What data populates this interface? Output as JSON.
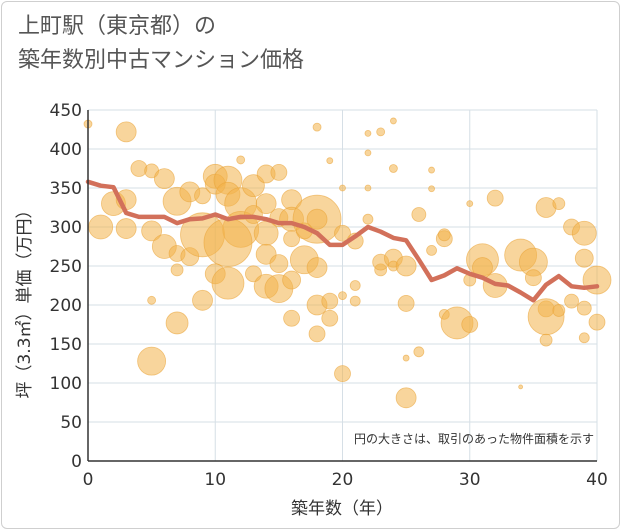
{
  "chart_data": {
    "type": "scatter",
    "title": "上町駅（東京都）の\n築年数別中古マンション価格",
    "xlabel": "築年数（年）",
    "ylabel": "坪（3.3㎡）単価（万円）",
    "xlim": [
      0,
      40
    ],
    "ylim": [
      0,
      450
    ],
    "x_ticks": [
      "0",
      "10",
      "20",
      "30",
      "40"
    ],
    "y_ticks": [
      "0",
      "50",
      "100",
      "150",
      "200",
      "250",
      "300",
      "350",
      "400",
      "450"
    ],
    "grid": true,
    "annotation": "円の大きさは、取引のあった物件面積を示す",
    "colors": {
      "bubble": "#f2b24a",
      "line": "#d2705a",
      "grid": "#d6dfe6",
      "axis": "#333333"
    },
    "series": [
      {
        "type": "line",
        "points": [
          [
            0,
            358
          ],
          [
            1,
            353
          ],
          [
            2,
            351
          ],
          [
            3,
            318
          ],
          [
            4,
            313
          ],
          [
            5,
            313
          ],
          [
            6,
            313
          ],
          [
            7,
            305
          ],
          [
            8,
            310
          ],
          [
            9,
            311
          ],
          [
            10,
            316
          ],
          [
            11,
            310
          ],
          [
            12,
            313
          ],
          [
            13,
            313
          ],
          [
            14,
            310
          ],
          [
            15,
            305
          ],
          [
            16,
            305
          ],
          [
            17,
            300
          ],
          [
            18,
            292
          ],
          [
            19,
            277
          ],
          [
            20,
            277
          ],
          [
            21,
            288
          ],
          [
            22,
            300
          ],
          [
            23,
            294
          ],
          [
            24,
            286
          ],
          [
            25,
            283
          ],
          [
            26,
            258
          ],
          [
            27,
            232
          ],
          [
            28,
            238
          ],
          [
            29,
            247
          ],
          [
            30,
            240
          ],
          [
            31,
            235
          ],
          [
            32,
            227
          ],
          [
            33,
            225
          ],
          [
            34,
            216
          ],
          [
            35,
            206
          ],
          [
            36,
            226
          ],
          [
            37,
            237
          ],
          [
            38,
            224
          ],
          [
            39,
            222
          ],
          [
            40,
            224
          ]
        ]
      },
      {
        "type": "bubble",
        "points": [
          [
            0,
            432,
            4
          ],
          [
            3,
            422,
            10
          ],
          [
            18,
            428,
            4
          ],
          [
            22,
            420,
            3
          ],
          [
            23,
            422,
            4
          ],
          [
            24,
            436,
            3
          ],
          [
            22,
            395,
            3
          ],
          [
            19,
            385,
            3
          ],
          [
            24,
            375,
            4
          ],
          [
            12,
            386,
            4
          ],
          [
            2,
            330,
            12
          ],
          [
            3,
            335,
            10
          ],
          [
            1,
            300,
            12
          ],
          [
            3,
            298,
            10
          ],
          [
            4,
            375,
            8
          ],
          [
            5,
            372,
            7
          ],
          [
            6,
            362,
            10
          ],
          [
            7,
            333,
            14
          ],
          [
            8,
            345,
            10
          ],
          [
            9,
            340,
            8
          ],
          [
            5,
            295,
            10
          ],
          [
            6,
            275,
            12
          ],
          [
            7,
            266,
            8
          ],
          [
            7,
            245,
            6
          ],
          [
            8,
            262,
            9
          ],
          [
            9,
            290,
            22
          ],
          [
            10,
            365,
            12
          ],
          [
            10,
            355,
            10
          ],
          [
            11,
            360,
            14
          ],
          [
            11,
            342,
            12
          ],
          [
            12,
            330,
            16
          ],
          [
            12,
            297,
            18
          ],
          [
            11,
            280,
            24
          ],
          [
            10,
            240,
            10
          ],
          [
            9,
            206,
            10
          ],
          [
            7,
            177,
            11
          ],
          [
            5,
            128,
            14
          ],
          [
            5,
            206,
            4
          ],
          [
            11,
            228,
            16
          ],
          [
            13,
            353,
            11
          ],
          [
            14,
            368,
            9
          ],
          [
            15,
            370,
            8
          ],
          [
            14,
            330,
            10
          ],
          [
            13,
            316,
            9
          ],
          [
            15,
            312,
            9
          ],
          [
            16,
            335,
            10
          ],
          [
            16,
            310,
            12
          ],
          [
            16,
            285,
            8
          ],
          [
            14,
            292,
            12
          ],
          [
            14,
            265,
            10
          ],
          [
            15,
            253,
            9
          ],
          [
            13,
            240,
            8
          ],
          [
            14,
            224,
            12
          ],
          [
            15,
            221,
            14
          ],
          [
            16,
            232,
            9
          ],
          [
            17,
            258,
            14
          ],
          [
            18,
            310,
            24
          ],
          [
            18,
            310,
            10
          ],
          [
            17,
            295,
            8
          ],
          [
            18,
            200,
            10
          ],
          [
            18,
            248,
            10
          ],
          [
            19,
            205,
            8
          ],
          [
            18,
            163,
            8
          ],
          [
            19,
            183,
            8
          ],
          [
            16,
            183,
            8
          ],
          [
            20,
            292,
            8
          ],
          [
            20,
            112,
            8
          ],
          [
            20,
            212,
            4
          ],
          [
            20,
            350,
            3
          ],
          [
            21,
            282,
            8
          ],
          [
            21,
            225,
            5
          ],
          [
            21,
            205,
            5
          ],
          [
            22,
            350,
            3
          ],
          [
            22,
            310,
            5
          ],
          [
            23,
            245,
            6
          ],
          [
            23,
            255,
            8
          ],
          [
            24,
            260,
            9
          ],
          [
            24,
            250,
            5
          ],
          [
            25,
            250,
            10
          ],
          [
            25,
            202,
            8
          ],
          [
            25,
            132,
            3
          ],
          [
            26,
            140,
            5
          ],
          [
            25,
            81,
            10
          ],
          [
            26,
            316,
            7
          ],
          [
            27,
            270,
            5
          ],
          [
            27,
            373,
            3
          ],
          [
            27,
            349,
            3
          ],
          [
            28,
            285,
            8
          ],
          [
            28,
            290,
            6
          ],
          [
            28,
            188,
            5
          ],
          [
            29,
            177,
            16
          ],
          [
            30,
            330,
            3
          ],
          [
            30,
            175,
            8
          ],
          [
            30,
            232,
            6
          ],
          [
            31,
            258,
            16
          ],
          [
            31,
            248,
            10
          ],
          [
            32,
            337,
            8
          ],
          [
            32,
            225,
            12
          ],
          [
            34,
            264,
            16
          ],
          [
            34,
            95,
            2
          ],
          [
            35,
            255,
            14
          ],
          [
            35,
            235,
            8
          ],
          [
            36,
            325,
            10
          ],
          [
            36,
            195,
            8
          ],
          [
            36,
            155,
            6
          ],
          [
            36,
            185,
            18
          ],
          [
            37,
            330,
            6
          ],
          [
            37,
            193,
            6
          ],
          [
            38,
            300,
            8
          ],
          [
            38,
            205,
            7
          ],
          [
            39,
            292,
            12
          ],
          [
            39,
            260,
            9
          ],
          [
            39,
            196,
            7
          ],
          [
            39,
            158,
            5
          ],
          [
            40,
            232,
            14
          ],
          [
            40,
            178,
            8
          ]
        ]
      }
    ]
  }
}
